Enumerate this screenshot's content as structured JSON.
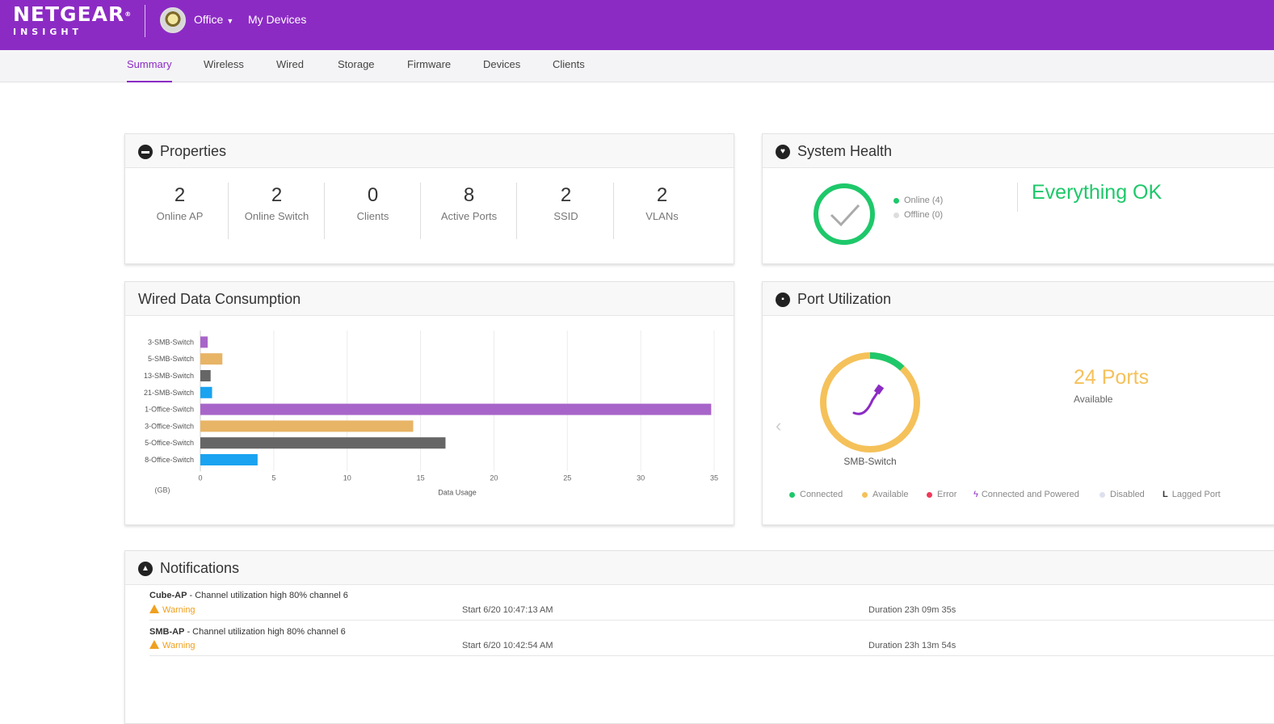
{
  "header": {
    "brand": "NETGEAR",
    "brand_sub": "INSIGHT",
    "location": "Office",
    "my_devices": "My Devices"
  },
  "tabs": [
    {
      "label": "Summary",
      "active": true
    },
    {
      "label": "Wireless"
    },
    {
      "label": "Wired"
    },
    {
      "label": "Storage"
    },
    {
      "label": "Firmware"
    },
    {
      "label": "Devices"
    },
    {
      "label": "Clients"
    }
  ],
  "properties": {
    "title": "Properties",
    "items": [
      {
        "value": "2",
        "label": "Online AP"
      },
      {
        "value": "2",
        "label": "Online Switch"
      },
      {
        "value": "0",
        "label": "Clients"
      },
      {
        "value": "8",
        "label": "Active Ports"
      },
      {
        "value": "2",
        "label": "SSID"
      },
      {
        "value": "2",
        "label": "VLANs"
      }
    ]
  },
  "system_health": {
    "title": "System Health",
    "online": "Online (4)",
    "offline": "Offline (0)",
    "status": "Everything OK",
    "colors": {
      "ok": "#1ec86a",
      "offline": "#dddddd"
    }
  },
  "wired_data": {
    "title": "Wired Data Consumption",
    "unit_label": "(GB)",
    "xlabel": "Data Usage"
  },
  "chart_data": {
    "type": "bar",
    "orientation": "horizontal",
    "categories": [
      "3-SMB-Switch",
      "5-SMB-Switch",
      "13-SMB-Switch",
      "21-SMB-Switch",
      "1-Office-Switch",
      "3-Office-Switch",
      "5-Office-Switch",
      "8-Office-Switch"
    ],
    "values": [
      0.5,
      1.5,
      0.7,
      0.8,
      34.8,
      14.5,
      16.7,
      3.9
    ],
    "colors": [
      "#a865c9",
      "#e8b465",
      "#666666",
      "#1aa3f0",
      "#a865c9",
      "#e8b465",
      "#666666",
      "#1aa3f0"
    ],
    "xlabel": "Data Usage",
    "xlim": [
      0,
      35
    ],
    "xticks": [
      0,
      5,
      10,
      15,
      20,
      25,
      30,
      35
    ],
    "grid": true
  },
  "port_utilization": {
    "title": "Port Utilization",
    "ports_count": "24 Ports",
    "ports_sub": "Available",
    "device": "SMB-Switch",
    "connected_fraction": 0.12,
    "legend": [
      {
        "label": "Connected",
        "color": "#1ec86a"
      },
      {
        "label": "Available",
        "color": "#f5c15a"
      },
      {
        "label": "Error",
        "color": "#f03a5a"
      },
      {
        "label": "Connected and Powered",
        "color": "#8c2bc4"
      },
      {
        "label": "Disabled",
        "color": "#dde0ee"
      },
      {
        "label": "Lagged Port",
        "color": "#333333"
      }
    ]
  },
  "notifications": {
    "title": "Notifications",
    "items": [
      {
        "device": "Cube-AP",
        "message": " - Channel utilization high 80% channel 6",
        "level": "Warning",
        "start": "Start 6/20 10:47:13 AM",
        "duration": "Duration 23h 09m 35s"
      },
      {
        "device": "SMB-AP",
        "message": " - Channel utilization high 80% channel 6",
        "level": "Warning",
        "start": "Start 6/20 10:42:54 AM",
        "duration": "Duration 23h 13m 54s"
      }
    ]
  }
}
